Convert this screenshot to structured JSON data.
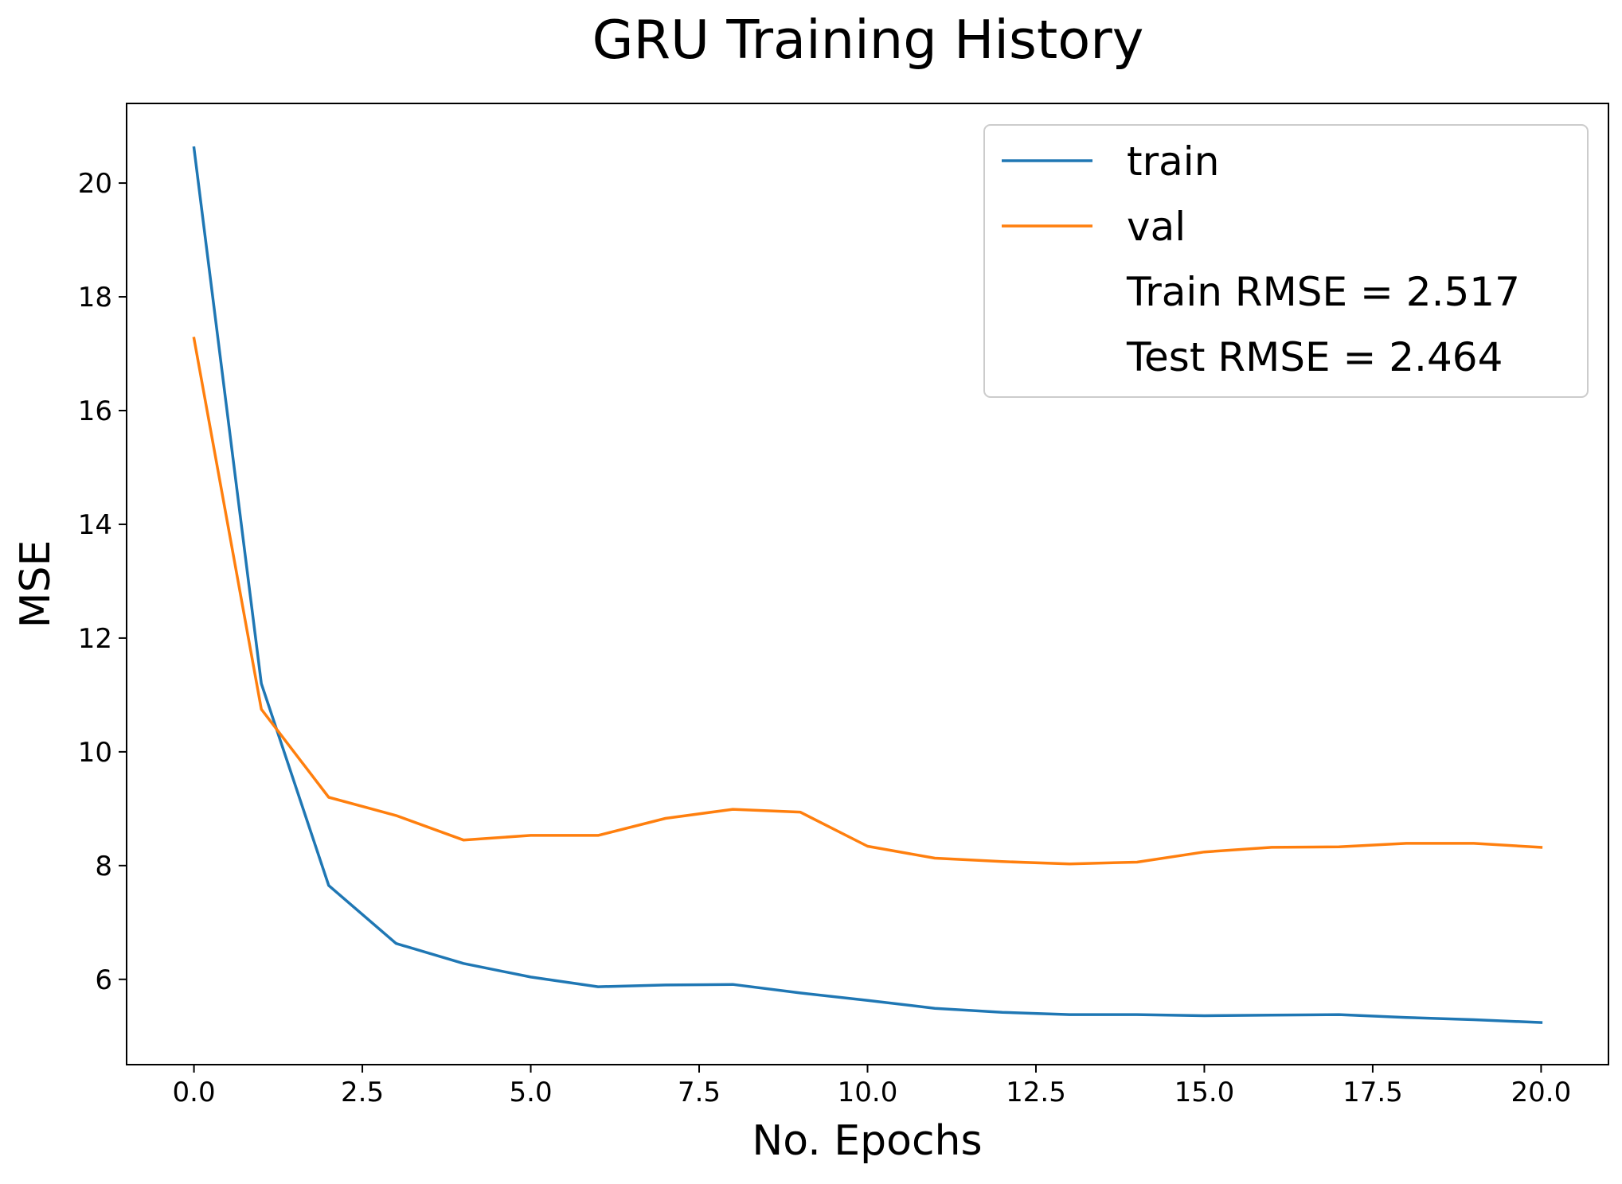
{
  "chart_data": {
    "type": "line",
    "title": "GRU Training History",
    "xlabel": "No. Epochs",
    "ylabel": "MSE",
    "xlim": [
      -1.0,
      21.0
    ],
    "ylim": [
      4.5,
      21.4
    ],
    "x_ticks": [
      "0.0",
      "2.5",
      "5.0",
      "7.5",
      "10.0",
      "12.5",
      "15.0",
      "17.5",
      "20.0"
    ],
    "x_tick_values": [
      0,
      2.5,
      5,
      7.5,
      10,
      12.5,
      15,
      17.5,
      20
    ],
    "y_ticks": [
      "6",
      "8",
      "10",
      "12",
      "14",
      "16",
      "18",
      "20"
    ],
    "y_tick_values": [
      6,
      8,
      10,
      12,
      14,
      16,
      18,
      20
    ],
    "grid": false,
    "legend_position": "top-right",
    "x": [
      0,
      1,
      2,
      3,
      4,
      5,
      6,
      7,
      8,
      9,
      10,
      11,
      12,
      13,
      14,
      15,
      16,
      17,
      18,
      19,
      20
    ],
    "series": [
      {
        "name": "train",
        "color": "#1f77b4",
        "values": [
          20.62,
          11.2,
          7.65,
          6.63,
          6.28,
          6.04,
          5.87,
          5.9,
          5.91,
          5.76,
          5.63,
          5.49,
          5.42,
          5.38,
          5.38,
          5.36,
          5.37,
          5.38,
          5.33,
          5.29,
          5.24
        ]
      },
      {
        "name": "val",
        "color": "#ff7f0e",
        "values": [
          17.27,
          10.75,
          9.2,
          8.88,
          8.45,
          8.53,
          8.53,
          8.83,
          8.99,
          8.94,
          8.34,
          8.13,
          8.07,
          8.03,
          8.06,
          8.24,
          8.32,
          8.33,
          8.39,
          8.39,
          8.32
        ]
      }
    ],
    "annotations": [
      "Train RMSE = 2.517",
      "Test RMSE = 2.464"
    ]
  }
}
